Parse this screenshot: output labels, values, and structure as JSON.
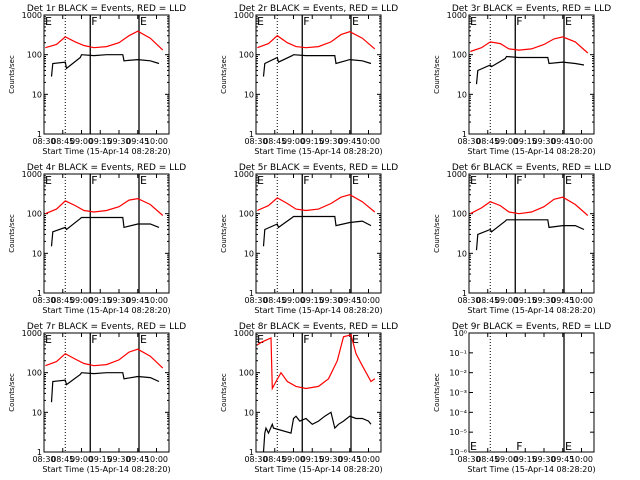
{
  "start_label": "Start Time (15-Apr-14 08:28:20)",
  "ylabel": "Counts/sec",
  "x_ticks": [
    "08:30",
    "08:45",
    "09:00",
    "09:15",
    "09:30",
    "09:45",
    "10:00"
  ],
  "colors": {
    "events": "#000000",
    "lld": "#ff0000"
  },
  "markers": {
    "e": "E",
    "f": "F"
  },
  "chart_data": [
    {
      "type": "line",
      "title": "Det 1r BLACK = Events, RED = LLD",
      "yscale": "log",
      "ylim": [
        1,
        1000
      ],
      "y_ticks": [
        "1",
        "10",
        "100",
        "1000"
      ],
      "xlim": [
        "08:30",
        "10:10"
      ],
      "vlines": {
        "dotted": [
          "08:47"
        ],
        "solid": [
          "09:07",
          "09:46"
        ]
      },
      "markers": [
        {
          "label": "E",
          "x": "08:30"
        },
        {
          "label": "F",
          "x": "09:07"
        },
        {
          "label": "E",
          "x": "09:46"
        }
      ],
      "series": [
        {
          "key": "lld",
          "x": [
            "08:31",
            "08:40",
            "08:47",
            "08:55",
            "09:02",
            "09:10",
            "09:20",
            "09:30",
            "09:38",
            "09:45",
            "09:55",
            "10:05"
          ],
          "y": [
            150,
            180,
            280,
            210,
            170,
            150,
            160,
            200,
            300,
            390,
            260,
            130
          ]
        },
        {
          "key": "events",
          "x": [
            "08:36",
            "08:37",
            "08:47",
            "08:48",
            "08:59",
            "09:00",
            "09:10",
            "09:20",
            "09:33",
            "09:34",
            "09:45",
            "09:55",
            "10:02"
          ],
          "y": [
            28,
            60,
            65,
            45,
            85,
            100,
            95,
            100,
            100,
            70,
            75,
            70,
            60
          ]
        }
      ]
    },
    {
      "type": "line",
      "title": "Det 2r BLACK = Events, RED = LLD",
      "yscale": "log",
      "ylim": [
        1,
        1000
      ],
      "y_ticks": [
        "1",
        "10",
        "100",
        "1000"
      ],
      "xlim": [
        "08:30",
        "10:10"
      ],
      "vlines": {
        "dotted": [
          "08:47"
        ],
        "solid": [
          "09:07",
          "09:46"
        ]
      },
      "markers": [
        {
          "label": "E",
          "x": "08:30"
        },
        {
          "label": "F",
          "x": "09:07"
        },
        {
          "label": "E",
          "x": "09:46"
        }
      ],
      "series": [
        {
          "key": "lld",
          "x": [
            "08:31",
            "08:40",
            "08:47",
            "08:55",
            "09:02",
            "09:10",
            "09:20",
            "09:30",
            "09:38",
            "09:45",
            "09:55",
            "10:05"
          ],
          "y": [
            150,
            190,
            300,
            200,
            160,
            150,
            160,
            210,
            320,
            380,
            260,
            140
          ]
        },
        {
          "key": "events",
          "x": [
            "08:36",
            "08:37",
            "08:47",
            "08:48",
            "08:59",
            "09:00",
            "09:10",
            "09:20",
            "09:33",
            "09:34",
            "09:45",
            "09:55",
            "10:02"
          ],
          "y": [
            28,
            60,
            85,
            65,
            95,
            100,
            95,
            95,
            95,
            60,
            75,
            70,
            60
          ]
        }
      ]
    },
    {
      "type": "line",
      "title": "Det 3r BLACK = Events, RED = LLD",
      "yscale": "log",
      "ylim": [
        1,
        1000
      ],
      "y_ticks": [
        "1",
        "10",
        "100",
        "1000"
      ],
      "xlim": [
        "08:30",
        "10:10"
      ],
      "vlines": {
        "dotted": [
          "08:47"
        ],
        "solid": [
          "09:07",
          "09:46"
        ]
      },
      "markers": [
        {
          "label": "E",
          "x": "08:30"
        },
        {
          "label": "F",
          "x": "09:07"
        },
        {
          "label": "E",
          "x": "09:46"
        }
      ],
      "series": [
        {
          "key": "lld",
          "x": [
            "08:31",
            "08:40",
            "08:47",
            "08:55",
            "09:02",
            "09:10",
            "09:20",
            "09:30",
            "09:38",
            "09:45",
            "09:55",
            "10:05"
          ],
          "y": [
            120,
            150,
            210,
            190,
            140,
            130,
            140,
            180,
            250,
            280,
            210,
            110
          ]
        },
        {
          "key": "events",
          "x": [
            "08:36",
            "08:37",
            "08:47",
            "08:48",
            "08:59",
            "09:00",
            "09:10",
            "09:20",
            "09:33",
            "09:34",
            "09:45",
            "09:55",
            "10:02"
          ],
          "y": [
            18,
            40,
            55,
            50,
            80,
            90,
            85,
            85,
            85,
            60,
            65,
            60,
            55
          ]
        }
      ]
    },
    {
      "type": "line",
      "title": "Det 4r BLACK = Events, RED = LLD",
      "yscale": "log",
      "ylim": [
        1,
        1000
      ],
      "y_ticks": [
        "1",
        "10",
        "100",
        "1000"
      ],
      "xlim": [
        "08:30",
        "10:10"
      ],
      "vlines": {
        "dotted": [
          "08:47"
        ],
        "solid": [
          "09:07",
          "09:46"
        ]
      },
      "markers": [
        {
          "label": "E",
          "x": "08:30"
        },
        {
          "label": "F",
          "x": "09:07"
        },
        {
          "label": "E",
          "x": "09:46"
        }
      ],
      "series": [
        {
          "key": "lld",
          "x": [
            "08:31",
            "08:40",
            "08:47",
            "08:55",
            "09:02",
            "09:10",
            "09:20",
            "09:30",
            "09:38",
            "09:45",
            "09:55",
            "10:05"
          ],
          "y": [
            100,
            130,
            210,
            160,
            120,
            110,
            120,
            150,
            220,
            240,
            170,
            90
          ]
        },
        {
          "key": "events",
          "x": [
            "08:36",
            "08:37",
            "08:47",
            "08:48",
            "08:59",
            "09:00",
            "09:10",
            "09:20",
            "09:33",
            "09:34",
            "09:45",
            "09:55",
            "10:02"
          ],
          "y": [
            15,
            35,
            45,
            40,
            75,
            80,
            80,
            80,
            80,
            45,
            55,
            55,
            45
          ]
        }
      ]
    },
    {
      "type": "line",
      "title": "Det 5r BLACK = Events, RED = LLD",
      "yscale": "log",
      "ylim": [
        1,
        1000
      ],
      "y_ticks": [
        "1",
        "10",
        "100",
        "1000"
      ],
      "xlim": [
        "08:30",
        "10:10"
      ],
      "vlines": {
        "dotted": [
          "08:47"
        ],
        "solid": [
          "09:07",
          "09:46"
        ]
      },
      "markers": [
        {
          "label": "E",
          "x": "08:30"
        },
        {
          "label": "F",
          "x": "09:07"
        },
        {
          "label": "E",
          "x": "09:46"
        }
      ],
      "series": [
        {
          "key": "lld",
          "x": [
            "08:31",
            "08:40",
            "08:47",
            "08:55",
            "09:02",
            "09:10",
            "09:20",
            "09:30",
            "09:38",
            "09:45",
            "09:55",
            "10:05"
          ],
          "y": [
            120,
            160,
            250,
            180,
            130,
            120,
            130,
            180,
            260,
            300,
            200,
            110
          ]
        },
        {
          "key": "events",
          "x": [
            "08:36",
            "08:37",
            "08:47",
            "08:48",
            "08:59",
            "09:00",
            "09:10",
            "09:20",
            "09:33",
            "09:34",
            "09:45",
            "09:55",
            "10:02"
          ],
          "y": [
            15,
            40,
            55,
            45,
            80,
            85,
            85,
            85,
            85,
            50,
            60,
            65,
            50
          ]
        }
      ]
    },
    {
      "type": "line",
      "title": "Det 6r BLACK = Events, RED = LLD",
      "yscale": "log",
      "ylim": [
        1,
        1000
      ],
      "y_ticks": [
        "1",
        "10",
        "100",
        "1000"
      ],
      "xlim": [
        "08:30",
        "10:10"
      ],
      "vlines": {
        "dotted": [
          "08:47"
        ],
        "solid": [
          "09:07",
          "09:46"
        ]
      },
      "markers": [
        {
          "label": "E",
          "x": "08:30"
        },
        {
          "label": "F",
          "x": "09:07"
        },
        {
          "label": "E",
          "x": "09:46"
        }
      ],
      "series": [
        {
          "key": "lld",
          "x": [
            "08:31",
            "08:40",
            "08:47",
            "08:55",
            "09:02",
            "09:10",
            "09:20",
            "09:30",
            "09:38",
            "09:45",
            "09:55",
            "10:05"
          ],
          "y": [
            100,
            140,
            200,
            160,
            110,
            100,
            110,
            150,
            230,
            260,
            170,
            90
          ]
        },
        {
          "key": "events",
          "x": [
            "08:36",
            "08:37",
            "08:47",
            "08:48",
            "08:59",
            "09:00",
            "09:10",
            "09:20",
            "09:33",
            "09:34",
            "09:45",
            "09:55",
            "10:02"
          ],
          "y": [
            12,
            30,
            40,
            35,
            65,
            70,
            70,
            70,
            70,
            45,
            50,
            50,
            40
          ]
        }
      ]
    },
    {
      "type": "line",
      "title": "Det 7r BLACK = Events, RED = LLD",
      "yscale": "log",
      "ylim": [
        1,
        1000
      ],
      "y_ticks": [
        "1",
        "10",
        "100",
        "1000"
      ],
      "xlim": [
        "08:30",
        "10:10"
      ],
      "vlines": {
        "dotted": [
          "08:47"
        ],
        "solid": [
          "09:07",
          "09:46"
        ]
      },
      "markers": [
        {
          "label": "E",
          "x": "08:30"
        },
        {
          "label": "F",
          "x": "09:07"
        },
        {
          "label": "E",
          "x": "09:46"
        }
      ],
      "series": [
        {
          "key": "lld",
          "x": [
            "08:31",
            "08:40",
            "08:47",
            "08:55",
            "09:02",
            "09:10",
            "09:20",
            "09:30",
            "09:38",
            "09:45",
            "09:55",
            "10:05"
          ],
          "y": [
            150,
            190,
            300,
            220,
            170,
            150,
            160,
            210,
            330,
            390,
            260,
            130
          ]
        },
        {
          "key": "events",
          "x": [
            "08:36",
            "08:37",
            "08:47",
            "08:48",
            "08:59",
            "09:00",
            "09:10",
            "09:20",
            "09:33",
            "09:34",
            "09:45",
            "09:55",
            "10:02"
          ],
          "y": [
            18,
            60,
            65,
            50,
            90,
            100,
            95,
            100,
            100,
            70,
            80,
            75,
            60
          ]
        }
      ]
    },
    {
      "type": "line",
      "title": "Det 8r BLACK = Events, RED = LLD",
      "yscale": "log",
      "ylim": [
        1,
        1000
      ],
      "y_ticks": [
        "1",
        "10",
        "100",
        "1000"
      ],
      "xlim": [
        "08:30",
        "10:10"
      ],
      "vlines": {
        "dotted": [
          "08:47"
        ],
        "solid": [
          "09:07",
          "09:46"
        ]
      },
      "markers": [
        {
          "label": "E",
          "x": "08:30"
        },
        {
          "label": "F",
          "x": "09:07"
        },
        {
          "label": "E",
          "x": "09:46"
        }
      ],
      "series": [
        {
          "key": "lld",
          "x": [
            "08:31",
            "08:35",
            "08:40",
            "08:42",
            "08:43",
            "08:46",
            "08:50",
            "08:55",
            "09:02",
            "09:10",
            "09:20",
            "09:28",
            "09:35",
            "09:40",
            "09:46",
            "09:50",
            "09:55",
            "10:02",
            "10:05"
          ],
          "y": [
            500,
            600,
            700,
            750,
            40,
            60,
            100,
            60,
            45,
            40,
            45,
            70,
            200,
            800,
            900,
            300,
            150,
            60,
            70
          ]
        },
        {
          "key": "events",
          "x": [
            "08:36",
            "08:37",
            "08:38",
            "08:40",
            "08:43",
            "08:44",
            "08:58",
            "09:00",
            "09:02",
            "09:05",
            "09:10",
            "09:15",
            "09:20",
            "09:25",
            "09:30",
            "09:33",
            "09:36",
            "09:40",
            "09:45",
            "09:50",
            "09:55",
            "10:00",
            "10:02"
          ],
          "y": [
            1,
            3,
            4,
            3,
            5,
            4,
            3,
            7,
            8,
            6,
            7,
            5,
            6,
            8,
            10,
            4,
            5,
            6,
            8,
            7,
            7,
            6,
            5
          ]
        }
      ]
    },
    {
      "type": "line",
      "title": "Det 9r BLACK = Events, RED = LLD",
      "yscale": "log",
      "y_ticks": [
        "10⁻⁶",
        "10⁻⁵",
        "10⁻⁴",
        "10⁻³",
        "10⁻²",
        "10⁻¹",
        "10⁰"
      ],
      "xlim": [
        "08:30",
        "10:10"
      ],
      "vlines": {
        "dotted": [
          "08:47"
        ],
        "solid": [
          "09:46"
        ]
      },
      "markers": [
        {
          "label": "E",
          "x": "08:30"
        },
        {
          "label": "F",
          "x": "09:07"
        },
        {
          "label": "E",
          "x": "09:46"
        }
      ],
      "series": []
    }
  ]
}
